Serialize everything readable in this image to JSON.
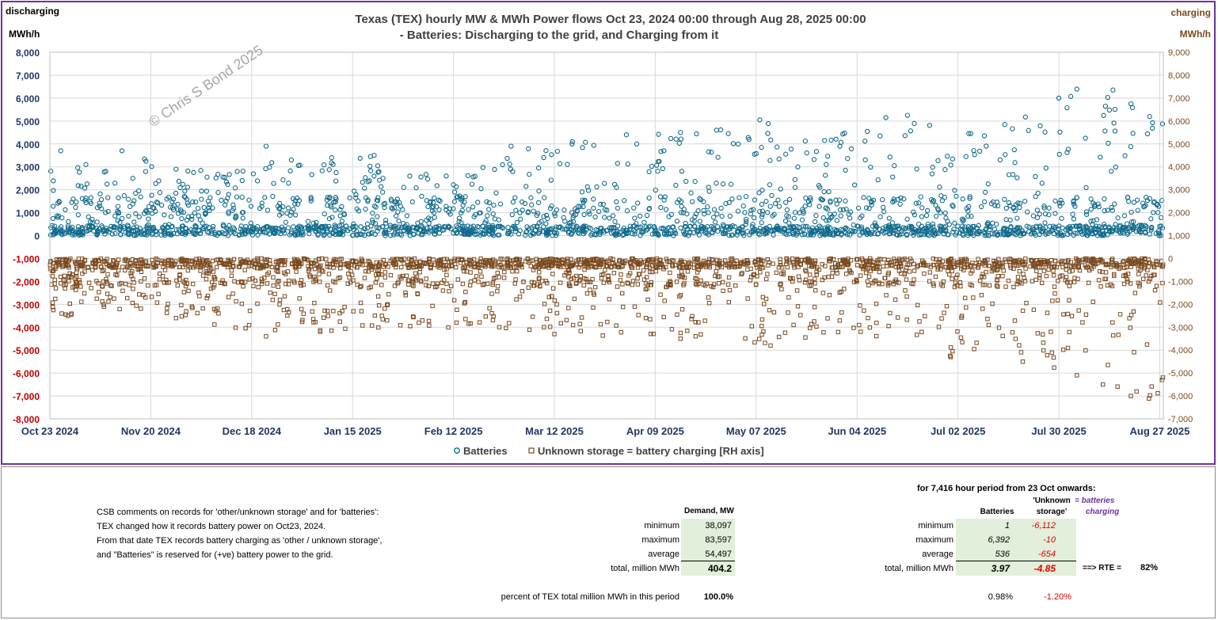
{
  "chart_data": {
    "type": "scatter",
    "title": "Texas (TEX) hourly MW & MWh Power flows Oct 23, 2024 00:00 through Aug 28, 2025 00:00",
    "subtitle": "- Batteries: Discharging to the grid, and Charging from it",
    "left_corner_label": "discharging",
    "right_corner_label": "charging",
    "ylabel_left": "MWh/h",
    "ylabel_right": "MWh/h",
    "watermark": "© Chris S Bond  2025",
    "ylim_left": [
      -8000,
      8000
    ],
    "ylim_right": [
      -7000,
      9000
    ],
    "yticks_left": [
      "8,000",
      "7,000",
      "6,000",
      "5,000",
      "4,000",
      "3,000",
      "2,000",
      "1,000",
      "0",
      "-1,000",
      "-2,000",
      "-3,000",
      "-4,000",
      "-5,000",
      "-6,000",
      "-7,000",
      "-8,000"
    ],
    "yticks_right": [
      "9,000",
      "8,000",
      "7,000",
      "6,000",
      "5,000",
      "4,000",
      "3,000",
      "2,000",
      "1,000",
      "0",
      "-1,000",
      "-2,000",
      "-3,000",
      "-4,000",
      "-5,000",
      "-6,000",
      "-7,000"
    ],
    "xticks": [
      "Oct 23 2024",
      "Nov 20 2024",
      "Dec 18 2024",
      "Jan 15 2025",
      "Feb 12 2025",
      "Mar 12 2025",
      "Apr 09 2025",
      "May 07 2025",
      "Jun 04 2025",
      "Jul 02 2025",
      "Jul 30 2025",
      "Aug 27 2025"
    ],
    "x_range_days": [
      0,
      309
    ],
    "legend_position": "bottom",
    "series": [
      {
        "name": "Batteries",
        "axis": "left",
        "color": "#0f6a8c",
        "marker": "circle",
        "summary": {
          "min": 1,
          "max": 6392,
          "average": 536
        },
        "sample_points": [
          [
            3,
            3700
          ],
          [
            10,
            3100
          ],
          [
            20,
            3700
          ],
          [
            35,
            2900
          ],
          [
            52,
            2800
          ],
          [
            60,
            3900
          ],
          [
            67,
            3300
          ],
          [
            90,
            3500
          ],
          [
            110,
            2600
          ],
          [
            128,
            3900
          ],
          [
            145,
            4100
          ],
          [
            160,
            4400
          ],
          [
            175,
            4500
          ],
          [
            185,
            4600
          ],
          [
            197,
            5050
          ],
          [
            215,
            4150
          ],
          [
            232,
            5150
          ],
          [
            238,
            5250
          ],
          [
            255,
            4450
          ],
          [
            265,
            4850
          ],
          [
            280,
            6000
          ],
          [
            285,
            6392
          ],
          [
            295,
            6350
          ],
          [
            300,
            5750
          ]
        ]
      },
      {
        "name": "Unknown storage = battery charging [RH axis]",
        "axis": "right",
        "color": "#7b4a1e",
        "marker": "square",
        "summary": {
          "min": -6112,
          "max": -10,
          "average": -654
        },
        "sample_points": [
          [
            5,
            -2500
          ],
          [
            15,
            -2100
          ],
          [
            35,
            -2600
          ],
          [
            60,
            -3400
          ],
          [
            75,
            -3200
          ],
          [
            100,
            -2950
          ],
          [
            140,
            -3300
          ],
          [
            175,
            -3500
          ],
          [
            200,
            -3800
          ],
          [
            225,
            -3200
          ],
          [
            250,
            -4300
          ],
          [
            270,
            -4500
          ],
          [
            285,
            -5100
          ],
          [
            300,
            -6000
          ],
          [
            305,
            -6112
          ]
        ]
      }
    ]
  },
  "table": {
    "comments_title": "CSB comments on  records for 'other/unknown storage' and for 'batteries':",
    "comments": [
      "TEX changed how it records battery power on Oct23, 2024.",
      "From that date TEX records battery charging as  'other / unknown storage',",
      "and \"Batteries\" is reserved for (+ve) battery power to the grid."
    ],
    "demand_header": "Demand, MW",
    "row_labels": [
      "minimum",
      "maximum",
      "average",
      "total, million MWh"
    ],
    "demand_values": [
      "38,097",
      "83,597",
      "54,497",
      "404.2"
    ],
    "period_title": "for 7,416 hour period from 23 Oct onwards:",
    "batteries_header": "Batteries",
    "unknown_header_line1": "'Unknown",
    "unknown_header_line2": "storage'",
    "note_line1": "= batteries",
    "note_line2": "charging",
    "batteries_values": [
      "1",
      "6,392",
      "536",
      "3.97"
    ],
    "unknown_values": [
      "-6,112",
      "-10",
      "-654",
      "-4.85"
    ],
    "rte_label": "==> RTE =",
    "rte_value": "82%",
    "percent_label": "percent of TEX total million MWh in this period",
    "percent_demand": "100.0%",
    "percent_batteries": "0.98%",
    "percent_unknown": "-1.20%"
  }
}
